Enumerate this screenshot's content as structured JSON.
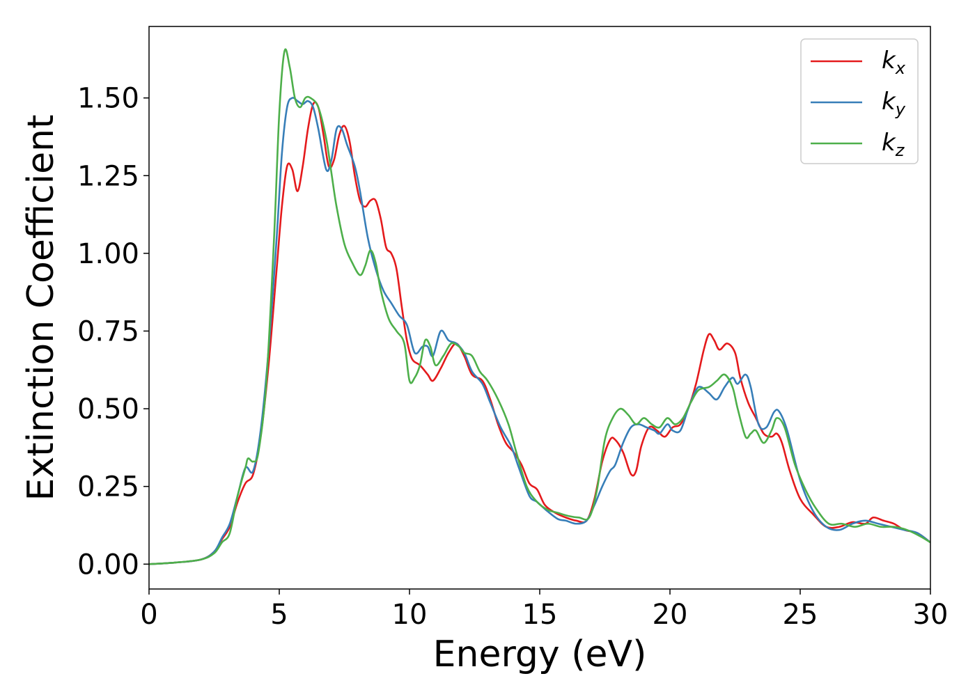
{
  "chart_data": {
    "type": "line",
    "title": "",
    "xlabel": "Energy (eV)",
    "ylabel": "Extinction Coefficient",
    "xlim": [
      0,
      30
    ],
    "ylim": [
      -0.08,
      1.73
    ],
    "xticks": [
      0,
      5,
      10,
      15,
      20,
      25,
      30
    ],
    "xtick_labels": [
      "0",
      "5",
      "10",
      "15",
      "20",
      "25",
      "30"
    ],
    "yticks": [
      0,
      0.25,
      0.5,
      0.75,
      1.0,
      1.25,
      1.5
    ],
    "ytick_labels": [
      "0.00",
      "0.25",
      "0.50",
      "0.75",
      "1.00",
      "1.25",
      "1.50"
    ],
    "grid": false,
    "legend_position": "top-right",
    "series": [
      {
        "name": "k_x",
        "label_main": "k",
        "label_sub": "x",
        "color": "#e41a1c",
        "points": [
          [
            0,
            0
          ],
          [
            1,
            0.005
          ],
          [
            2,
            0.015
          ],
          [
            2.5,
            0.04
          ],
          [
            2.8,
            0.08
          ],
          [
            3.1,
            0.12
          ],
          [
            3.4,
            0.2
          ],
          [
            3.7,
            0.26
          ],
          [
            4.0,
            0.29
          ],
          [
            4.3,
            0.42
          ],
          [
            4.6,
            0.65
          ],
          [
            4.9,
            0.95
          ],
          [
            5.1,
            1.15
          ],
          [
            5.3,
            1.28
          ],
          [
            5.5,
            1.27
          ],
          [
            5.7,
            1.2
          ],
          [
            5.9,
            1.28
          ],
          [
            6.1,
            1.4
          ],
          [
            6.3,
            1.48
          ],
          [
            6.5,
            1.47
          ],
          [
            6.7,
            1.38
          ],
          [
            6.9,
            1.28
          ],
          [
            7.1,
            1.3
          ],
          [
            7.3,
            1.38
          ],
          [
            7.5,
            1.41
          ],
          [
            7.7,
            1.36
          ],
          [
            7.9,
            1.25
          ],
          [
            8.1,
            1.17
          ],
          [
            8.3,
            1.15
          ],
          [
            8.5,
            1.17
          ],
          [
            8.7,
            1.17
          ],
          [
            8.9,
            1.11
          ],
          [
            9.1,
            1.02
          ],
          [
            9.3,
            1.0
          ],
          [
            9.5,
            0.95
          ],
          [
            9.7,
            0.83
          ],
          [
            9.9,
            0.72
          ],
          [
            10.1,
            0.66
          ],
          [
            10.4,
            0.64
          ],
          [
            10.7,
            0.61
          ],
          [
            10.9,
            0.59
          ],
          [
            11.2,
            0.63
          ],
          [
            11.5,
            0.68
          ],
          [
            11.8,
            0.71
          ],
          [
            12.1,
            0.67
          ],
          [
            12.4,
            0.61
          ],
          [
            12.8,
            0.59
          ],
          [
            13.1,
            0.53
          ],
          [
            13.4,
            0.45
          ],
          [
            13.7,
            0.39
          ],
          [
            14.0,
            0.36
          ],
          [
            14.3,
            0.32
          ],
          [
            14.6,
            0.26
          ],
          [
            14.9,
            0.24
          ],
          [
            15.2,
            0.19
          ],
          [
            15.6,
            0.165
          ],
          [
            16.0,
            0.15
          ],
          [
            16.4,
            0.14
          ],
          [
            16.8,
            0.14
          ],
          [
            17.1,
            0.21
          ],
          [
            17.4,
            0.33
          ],
          [
            17.7,
            0.4
          ],
          [
            17.9,
            0.4
          ],
          [
            18.2,
            0.36
          ],
          [
            18.5,
            0.29
          ],
          [
            18.7,
            0.3
          ],
          [
            18.9,
            0.38
          ],
          [
            19.2,
            0.44
          ],
          [
            19.5,
            0.43
          ],
          [
            19.8,
            0.41
          ],
          [
            20.1,
            0.44
          ],
          [
            20.4,
            0.45
          ],
          [
            20.7,
            0.5
          ],
          [
            21.0,
            0.58
          ],
          [
            21.3,
            0.69
          ],
          [
            21.5,
            0.74
          ],
          [
            21.7,
            0.72
          ],
          [
            21.9,
            0.69
          ],
          [
            22.2,
            0.71
          ],
          [
            22.5,
            0.68
          ],
          [
            22.7,
            0.6
          ],
          [
            23.0,
            0.52
          ],
          [
            23.3,
            0.47
          ],
          [
            23.6,
            0.42
          ],
          [
            23.9,
            0.41
          ],
          [
            24.1,
            0.42
          ],
          [
            24.3,
            0.39
          ],
          [
            24.6,
            0.3
          ],
          [
            25.0,
            0.21
          ],
          [
            25.5,
            0.16
          ],
          [
            26.0,
            0.12
          ],
          [
            26.5,
            0.12
          ],
          [
            27.0,
            0.135
          ],
          [
            27.5,
            0.13
          ],
          [
            27.8,
            0.15
          ],
          [
            28.2,
            0.14
          ],
          [
            28.6,
            0.13
          ],
          [
            29.0,
            0.11
          ],
          [
            29.5,
            0.1
          ],
          [
            30.0,
            0.07
          ]
        ]
      },
      {
        "name": "k_y",
        "label_main": "k",
        "label_sub": "y",
        "color": "#377eb8",
        "points": [
          [
            0,
            0
          ],
          [
            1,
            0.005
          ],
          [
            2,
            0.015
          ],
          [
            2.5,
            0.04
          ],
          [
            2.8,
            0.085
          ],
          [
            3.1,
            0.13
          ],
          [
            3.4,
            0.22
          ],
          [
            3.7,
            0.31
          ],
          [
            4.0,
            0.3
          ],
          [
            4.3,
            0.44
          ],
          [
            4.6,
            0.7
          ],
          [
            4.9,
            1.05
          ],
          [
            5.1,
            1.32
          ],
          [
            5.3,
            1.47
          ],
          [
            5.5,
            1.5
          ],
          [
            5.7,
            1.49
          ],
          [
            5.9,
            1.48
          ],
          [
            6.1,
            1.49
          ],
          [
            6.3,
            1.47
          ],
          [
            6.5,
            1.4
          ],
          [
            6.8,
            1.27
          ],
          [
            7.0,
            1.3
          ],
          [
            7.2,
            1.4
          ],
          [
            7.4,
            1.4
          ],
          [
            7.6,
            1.35
          ],
          [
            7.9,
            1.28
          ],
          [
            8.1,
            1.2
          ],
          [
            8.4,
            1.05
          ],
          [
            8.7,
            0.95
          ],
          [
            9.0,
            0.88
          ],
          [
            9.3,
            0.84
          ],
          [
            9.6,
            0.8
          ],
          [
            9.9,
            0.77
          ],
          [
            10.2,
            0.68
          ],
          [
            10.5,
            0.7
          ],
          [
            10.7,
            0.7
          ],
          [
            10.9,
            0.67
          ],
          [
            11.2,
            0.75
          ],
          [
            11.5,
            0.72
          ],
          [
            11.8,
            0.71
          ],
          [
            12.1,
            0.68
          ],
          [
            12.4,
            0.62
          ],
          [
            12.8,
            0.58
          ],
          [
            13.1,
            0.52
          ],
          [
            13.5,
            0.44
          ],
          [
            13.9,
            0.38
          ],
          [
            14.2,
            0.31
          ],
          [
            14.6,
            0.22
          ],
          [
            14.9,
            0.2
          ],
          [
            15.3,
            0.17
          ],
          [
            15.7,
            0.145
          ],
          [
            16.0,
            0.14
          ],
          [
            16.4,
            0.13
          ],
          [
            16.8,
            0.14
          ],
          [
            17.1,
            0.19
          ],
          [
            17.4,
            0.25
          ],
          [
            17.7,
            0.3
          ],
          [
            17.9,
            0.32
          ],
          [
            18.2,
            0.39
          ],
          [
            18.5,
            0.44
          ],
          [
            18.8,
            0.45
          ],
          [
            19.1,
            0.44
          ],
          [
            19.4,
            0.43
          ],
          [
            19.6,
            0.42
          ],
          [
            19.9,
            0.45
          ],
          [
            20.1,
            0.43
          ],
          [
            20.4,
            0.43
          ],
          [
            20.7,
            0.5
          ],
          [
            21.0,
            0.56
          ],
          [
            21.2,
            0.57
          ],
          [
            21.5,
            0.55
          ],
          [
            21.8,
            0.53
          ],
          [
            22.1,
            0.57
          ],
          [
            22.4,
            0.6
          ],
          [
            22.6,
            0.58
          ],
          [
            22.9,
            0.61
          ],
          [
            23.1,
            0.57
          ],
          [
            23.4,
            0.45
          ],
          [
            23.7,
            0.44
          ],
          [
            24.0,
            0.49
          ],
          [
            24.2,
            0.49
          ],
          [
            24.5,
            0.43
          ],
          [
            25.0,
            0.27
          ],
          [
            25.5,
            0.17
          ],
          [
            26.0,
            0.12
          ],
          [
            26.5,
            0.11
          ],
          [
            27.0,
            0.13
          ],
          [
            27.5,
            0.14
          ],
          [
            28.0,
            0.13
          ],
          [
            28.5,
            0.12
          ],
          [
            29.0,
            0.11
          ],
          [
            29.5,
            0.1
          ],
          [
            30.0,
            0.07
          ]
        ]
      },
      {
        "name": "k_z",
        "label_main": "k",
        "label_sub": "z",
        "color": "#4daf4a",
        "points": [
          [
            0,
            0
          ],
          [
            1,
            0.005
          ],
          [
            2,
            0.015
          ],
          [
            2.5,
            0.035
          ],
          [
            2.8,
            0.07
          ],
          [
            3.1,
            0.1
          ],
          [
            3.4,
            0.22
          ],
          [
            3.7,
            0.31
          ],
          [
            3.8,
            0.34
          ],
          [
            4.0,
            0.33
          ],
          [
            4.2,
            0.36
          ],
          [
            4.5,
            0.58
          ],
          [
            4.8,
            1.05
          ],
          [
            5.0,
            1.45
          ],
          [
            5.2,
            1.65
          ],
          [
            5.4,
            1.6
          ],
          [
            5.6,
            1.5
          ],
          [
            5.8,
            1.47
          ],
          [
            6.0,
            1.5
          ],
          [
            6.2,
            1.5
          ],
          [
            6.5,
            1.47
          ],
          [
            6.8,
            1.37
          ],
          [
            7.0,
            1.26
          ],
          [
            7.2,
            1.15
          ],
          [
            7.5,
            1.03
          ],
          [
            7.8,
            0.97
          ],
          [
            8.1,
            0.93
          ],
          [
            8.3,
            0.96
          ],
          [
            8.5,
            1.01
          ],
          [
            8.7,
            0.97
          ],
          [
            8.9,
            0.88
          ],
          [
            9.2,
            0.79
          ],
          [
            9.5,
            0.75
          ],
          [
            9.8,
            0.71
          ],
          [
            10.0,
            0.59
          ],
          [
            10.2,
            0.6
          ],
          [
            10.4,
            0.64
          ],
          [
            10.6,
            0.72
          ],
          [
            10.8,
            0.7
          ],
          [
            11.0,
            0.64
          ],
          [
            11.3,
            0.67
          ],
          [
            11.6,
            0.71
          ],
          [
            11.9,
            0.7
          ],
          [
            12.1,
            0.68
          ],
          [
            12.4,
            0.67
          ],
          [
            12.7,
            0.62
          ],
          [
            13.0,
            0.59
          ],
          [
            13.4,
            0.53
          ],
          [
            13.8,
            0.45
          ],
          [
            14.1,
            0.36
          ],
          [
            14.5,
            0.25
          ],
          [
            14.9,
            0.2
          ],
          [
            15.3,
            0.175
          ],
          [
            15.7,
            0.165
          ],
          [
            16.1,
            0.155
          ],
          [
            16.5,
            0.15
          ],
          [
            16.9,
            0.15
          ],
          [
            17.2,
            0.24
          ],
          [
            17.5,
            0.4
          ],
          [
            17.8,
            0.47
          ],
          [
            18.1,
            0.5
          ],
          [
            18.4,
            0.48
          ],
          [
            18.7,
            0.45
          ],
          [
            19.0,
            0.47
          ],
          [
            19.3,
            0.45
          ],
          [
            19.6,
            0.44
          ],
          [
            19.9,
            0.47
          ],
          [
            20.2,
            0.45
          ],
          [
            20.5,
            0.47
          ],
          [
            20.8,
            0.52
          ],
          [
            21.1,
            0.56
          ],
          [
            21.5,
            0.57
          ],
          [
            21.8,
            0.59
          ],
          [
            22.1,
            0.61
          ],
          [
            22.4,
            0.57
          ],
          [
            22.6,
            0.5
          ],
          [
            22.9,
            0.41
          ],
          [
            23.1,
            0.42
          ],
          [
            23.3,
            0.43
          ],
          [
            23.6,
            0.39
          ],
          [
            23.9,
            0.43
          ],
          [
            24.1,
            0.47
          ],
          [
            24.4,
            0.44
          ],
          [
            24.8,
            0.32
          ],
          [
            25.2,
            0.24
          ],
          [
            25.6,
            0.18
          ],
          [
            26.1,
            0.13
          ],
          [
            26.6,
            0.13
          ],
          [
            27.1,
            0.12
          ],
          [
            27.6,
            0.13
          ],
          [
            28.1,
            0.12
          ],
          [
            28.6,
            0.12
          ],
          [
            29.1,
            0.11
          ],
          [
            29.6,
            0.09
          ],
          [
            30.0,
            0.07
          ]
        ]
      }
    ]
  }
}
